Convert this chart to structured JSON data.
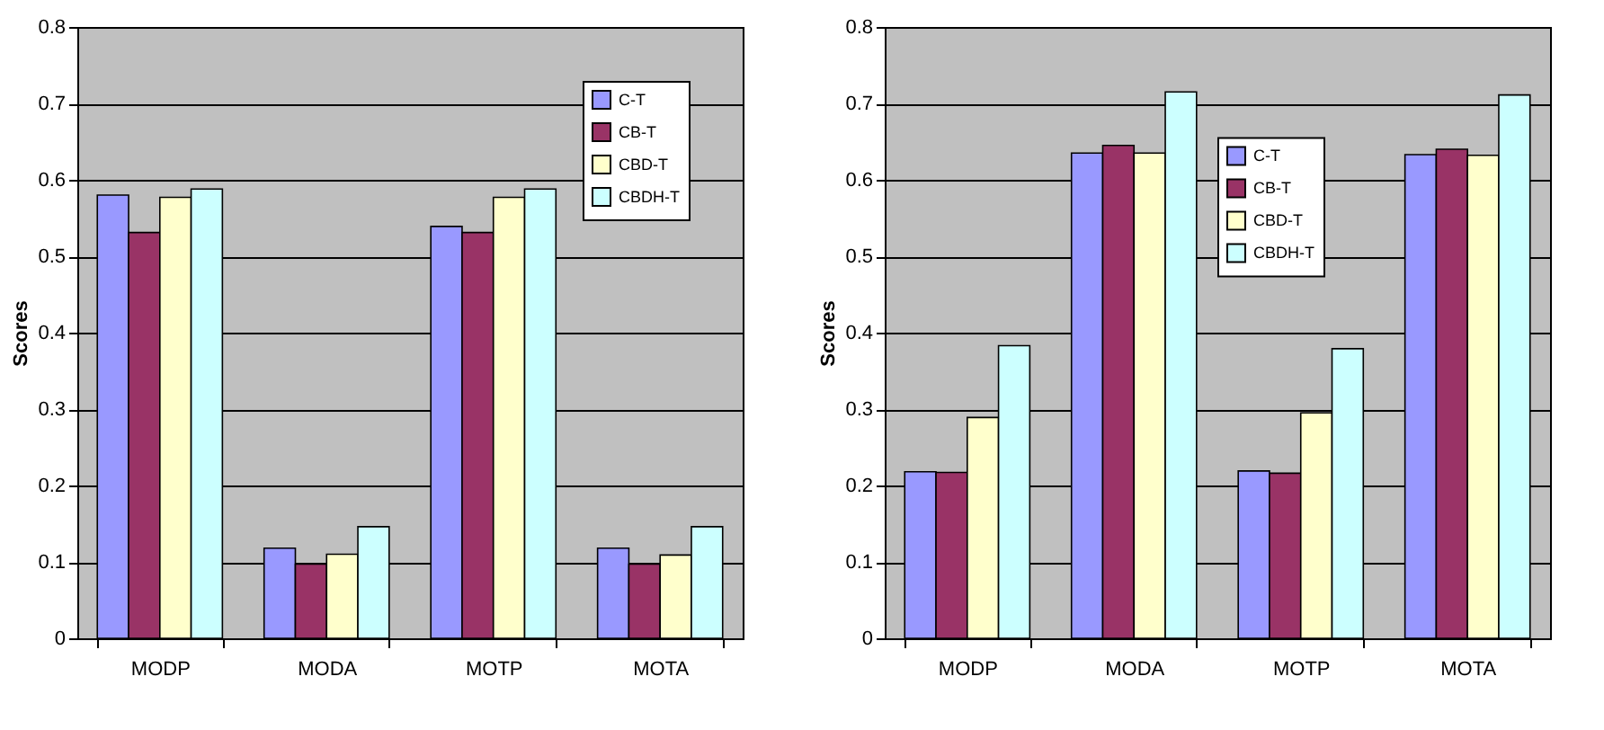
{
  "chart_data": [
    {
      "type": "bar",
      "ylabel": "Scores",
      "categories": [
        "MODP",
        "MODA",
        "MOTP",
        "MOTA"
      ],
      "ylim": [
        0,
        0.8
      ],
      "yticks": [
        0,
        0.1,
        0.2,
        0.3,
        0.4,
        0.5,
        0.6,
        0.7,
        0.8
      ],
      "grid": "y",
      "legend": "top right",
      "series": [
        {
          "name": "C-T",
          "color": "#9999ff",
          "values": [
            0.58,
            0.118,
            0.539,
            0.118
          ]
        },
        {
          "name": "CB-T",
          "color": "#993366",
          "values": [
            0.531,
            0.097,
            0.531,
            0.097
          ]
        },
        {
          "name": "CBD-T",
          "color": "#ffffcc",
          "values": [
            0.577,
            0.11,
            0.577,
            0.109
          ]
        },
        {
          "name": "CBDH-T",
          "color": "#ccffff",
          "values": [
            0.588,
            0.146,
            0.588,
            0.146
          ]
        }
      ]
    },
    {
      "type": "bar",
      "ylabel": "Scores",
      "categories": [
        "MODP",
        "MODA",
        "MOTP",
        "MOTA"
      ],
      "ylim": [
        0,
        0.8
      ],
      "yticks": [
        0,
        0.1,
        0.2,
        0.3,
        0.4,
        0.5,
        0.6,
        0.7,
        0.8
      ],
      "grid": "y",
      "legend": "top",
      "series": [
        {
          "name": "C-T",
          "color": "#9999ff",
          "values": [
            0.218,
            0.635,
            0.219,
            0.633
          ]
        },
        {
          "name": "CB-T",
          "color": "#993366",
          "values": [
            0.217,
            0.645,
            0.216,
            0.64
          ]
        },
        {
          "name": "CBD-T",
          "color": "#ffffcc",
          "values": [
            0.289,
            0.635,
            0.295,
            0.632
          ]
        },
        {
          "name": "CBDH-T",
          "color": "#ccffff",
          "values": [
            0.383,
            0.715,
            0.379,
            0.711
          ]
        }
      ]
    }
  ]
}
